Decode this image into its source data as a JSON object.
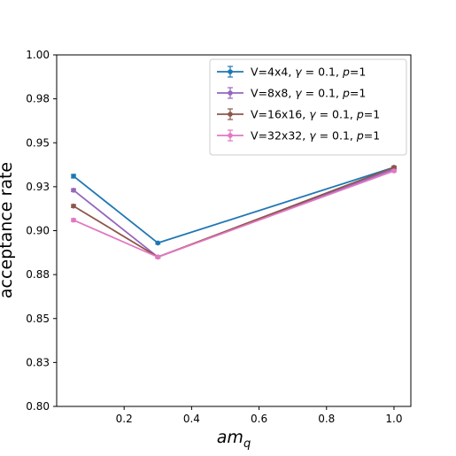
{
  "chart_data": {
    "type": "line",
    "xlabel": "am",
    "xlabel_sub": "q",
    "ylabel": "acceptance rate",
    "xlim": [
      0.0,
      1.05
    ],
    "ylim": [
      0.8,
      1.0
    ],
    "xticks": [
      0.2,
      0.4,
      0.6,
      0.8,
      1.0
    ],
    "xtick_labels": [
      "0.2",
      "0.4",
      "0.6",
      "0.8",
      "1.0"
    ],
    "yticks": [
      0.8,
      0.825,
      0.85,
      0.875,
      0.9,
      0.925,
      0.95,
      0.975,
      1.0
    ],
    "ytick_labels": [
      "0.80",
      "0.83",
      "0.85",
      "0.88",
      "0.90",
      "0.93",
      "0.95",
      "0.98",
      "1.00"
    ],
    "grid": false,
    "legend_position": "top-right",
    "x": [
      0.05,
      0.3,
      1.0
    ],
    "series": [
      {
        "name": "V=4x4, γ = 0.1, p=1",
        "legend_parts": [
          "V=4x4, ",
          "γ",
          " = 0.1, ",
          "p",
          "=1"
        ],
        "color": "#1f77b4",
        "values": [
          0.931,
          0.893,
          0.936
        ],
        "errors": [
          0.001,
          0.0006,
          0.0006
        ]
      },
      {
        "name": "V=8x8, γ = 0.1, p=1",
        "legend_parts": [
          "V=8x8, ",
          "γ",
          " = 0.1, ",
          "p",
          "=1"
        ],
        "color": "#9467bd",
        "values": [
          0.923,
          0.885,
          0.935
        ],
        "errors": [
          0.0008,
          0.0006,
          0.0006
        ]
      },
      {
        "name": "V=16x16, γ = 0.1, p=1",
        "legend_parts": [
          "V=16x16, ",
          "γ",
          " = 0.1, ",
          "p",
          "=1"
        ],
        "color": "#8c564b",
        "values": [
          0.914,
          0.885,
          0.936
        ],
        "errors": [
          0.0008,
          0.0006,
          0.0006
        ]
      },
      {
        "name": "V=32x32, γ = 0.1, p=1",
        "legend_parts": [
          "V=32x32, ",
          "γ",
          " = 0.1, ",
          "p",
          "=1"
        ],
        "color": "#e377c2",
        "values": [
          0.906,
          0.885,
          0.934
        ],
        "errors": [
          0.0008,
          0.0006,
          0.0006
        ]
      }
    ]
  }
}
